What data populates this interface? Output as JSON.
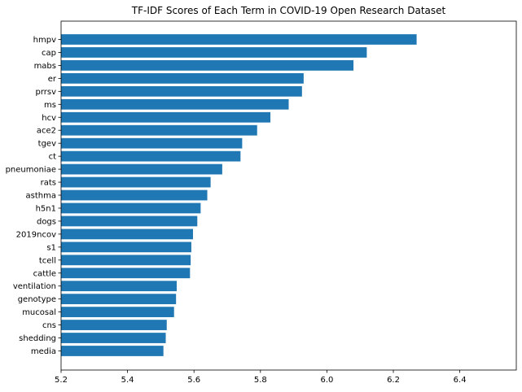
{
  "chart_data": {
    "type": "bar",
    "orientation": "horizontal",
    "title": "TF-IDF Scores of Each Term in COVID-19 Open Research Dataset",
    "xlabel": "",
    "ylabel": "",
    "xlim": [
      5.2,
      6.57
    ],
    "x_ticks": [
      5.2,
      5.4,
      5.6,
      5.8,
      6.0,
      6.2,
      6.4
    ],
    "x_tick_labels": [
      "5.2",
      "5.4",
      "5.6",
      "5.8",
      "6.0",
      "6.2",
      "6.4"
    ],
    "grid": false,
    "bar_color": "#1f77b4",
    "categories": [
      "hmpv",
      "cap",
      "mabs",
      "er",
      "prrsv",
      "ms",
      "hcv",
      "ace2",
      "tgev",
      "ct",
      "pneumoniae",
      "rats",
      "asthma",
      "h5n1",
      "dogs",
      "2019ncov",
      "s1",
      "tcell",
      "cattle",
      "ventilation",
      "genotype",
      "mucosal",
      "cns",
      "shedding",
      "media"
    ],
    "values": [
      6.27,
      6.12,
      6.08,
      5.93,
      5.925,
      5.885,
      5.83,
      5.79,
      5.745,
      5.74,
      5.685,
      5.65,
      5.64,
      5.62,
      5.61,
      5.597,
      5.592,
      5.59,
      5.588,
      5.548,
      5.546,
      5.54,
      5.518,
      5.515,
      5.508
    ]
  }
}
